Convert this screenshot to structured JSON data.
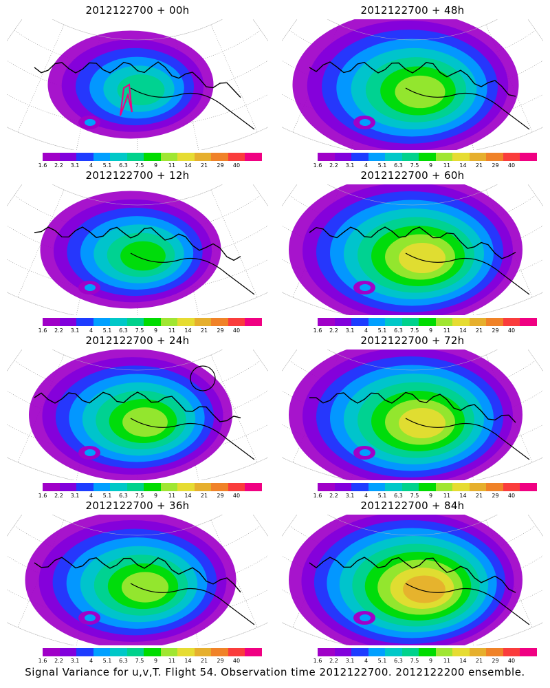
{
  "chart_data": {
    "type": "heatmap",
    "panels": [
      {
        "title": "2012122700 + 00h",
        "intensity": 0.35,
        "spread": 0.55,
        "circle": false,
        "pink": true
      },
      {
        "title": "2012122700 + 48h",
        "intensity": 0.6,
        "spread": 0.95,
        "circle": false,
        "pink": false
      },
      {
        "title": "2012122700 + 12h",
        "intensity": 0.45,
        "spread": 0.65,
        "circle": false,
        "pink": false
      },
      {
        "title": "2012122700 + 60h",
        "intensity": 0.7,
        "spread": 1.0,
        "circle": false,
        "pink": false
      },
      {
        "title": "2012122700 + 24h",
        "intensity": 0.5,
        "spread": 0.8,
        "circle": true,
        "pink": false
      },
      {
        "title": "2012122700 + 72h",
        "intensity": 0.75,
        "spread": 1.0,
        "circle": false,
        "pink": false
      },
      {
        "title": "2012122700 + 36h",
        "intensity": 0.55,
        "spread": 0.85,
        "circle": false,
        "pink": false
      },
      {
        "title": "2012122700 + 84h",
        "intensity": 0.8,
        "spread": 1.0,
        "circle": false,
        "pink": false
      }
    ],
    "colorbar": {
      "labels": [
        "1.6",
        "2.2",
        "3.1",
        "4",
        "5.1",
        "6.3",
        "7.5",
        "9",
        "11",
        "14",
        "21",
        "29",
        "40"
      ],
      "colors": [
        "#a000c8",
        "#8200dc",
        "#1e3cff",
        "#00a0ff",
        "#00c8c8",
        "#00d28c",
        "#00dc00",
        "#a0e632",
        "#e6dc32",
        "#e6af2d",
        "#f08228",
        "#fa3c3c",
        "#f00082"
      ]
    },
    "caption": "Signal Variance for u,v,T. Flight 54. Observation time 2012122700. 2012122200 ensemble."
  }
}
